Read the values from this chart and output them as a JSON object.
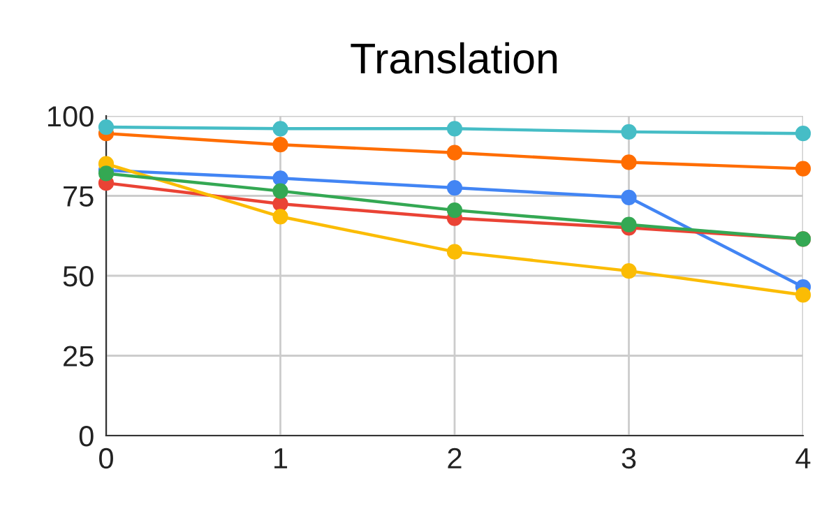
{
  "chart_data": {
    "type": "line",
    "title": "Translation",
    "x": [
      0,
      1,
      2,
      3,
      4
    ],
    "xlim": [
      0,
      4
    ],
    "xticks": [
      0,
      1,
      2,
      3,
      4
    ],
    "ylim": [
      0,
      100
    ],
    "yticks": [
      0,
      25,
      50,
      75,
      100
    ],
    "grid": true,
    "marker": "circle",
    "line_style": "solid",
    "series": [
      {
        "color": "#4285f4",
        "values": [
          83,
          80.5,
          77.5,
          74.5,
          46.5
        ]
      },
      {
        "color": "#ea4335",
        "values": [
          79,
          72.5,
          68,
          65,
          61.5
        ]
      },
      {
        "color": "#fbbc04",
        "values": [
          85,
          68.5,
          57.5,
          51.5,
          44
        ]
      },
      {
        "color": "#34a853",
        "values": [
          82,
          76.5,
          70.5,
          66,
          61.5
        ]
      },
      {
        "color": "#ff6d01",
        "values": [
          94.5,
          91,
          88.5,
          85.5,
          83.5
        ]
      },
      {
        "color": "#46bdc6",
        "values": [
          96.5,
          96,
          96,
          95,
          94.5
        ]
      }
    ]
  }
}
